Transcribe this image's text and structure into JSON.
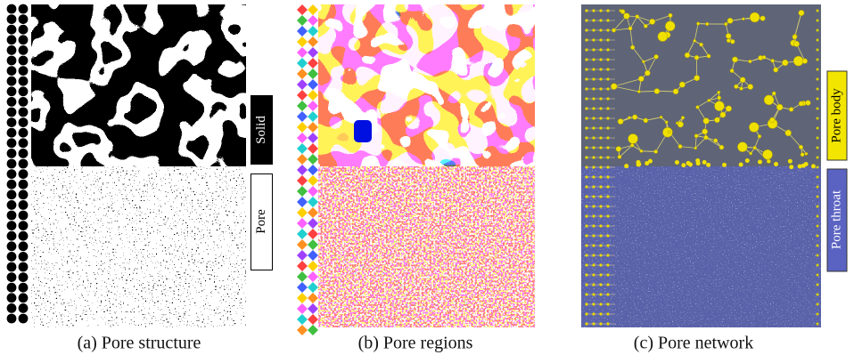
{
  "panels": [
    {
      "caption": "(a) Pore structure",
      "legend": [
        "Solid",
        "Pore"
      ]
    },
    {
      "caption": "(b) Pore regions"
    },
    {
      "caption": "(c) Pore network",
      "legend": [
        "Pore body",
        "Pore throat"
      ]
    }
  ]
}
